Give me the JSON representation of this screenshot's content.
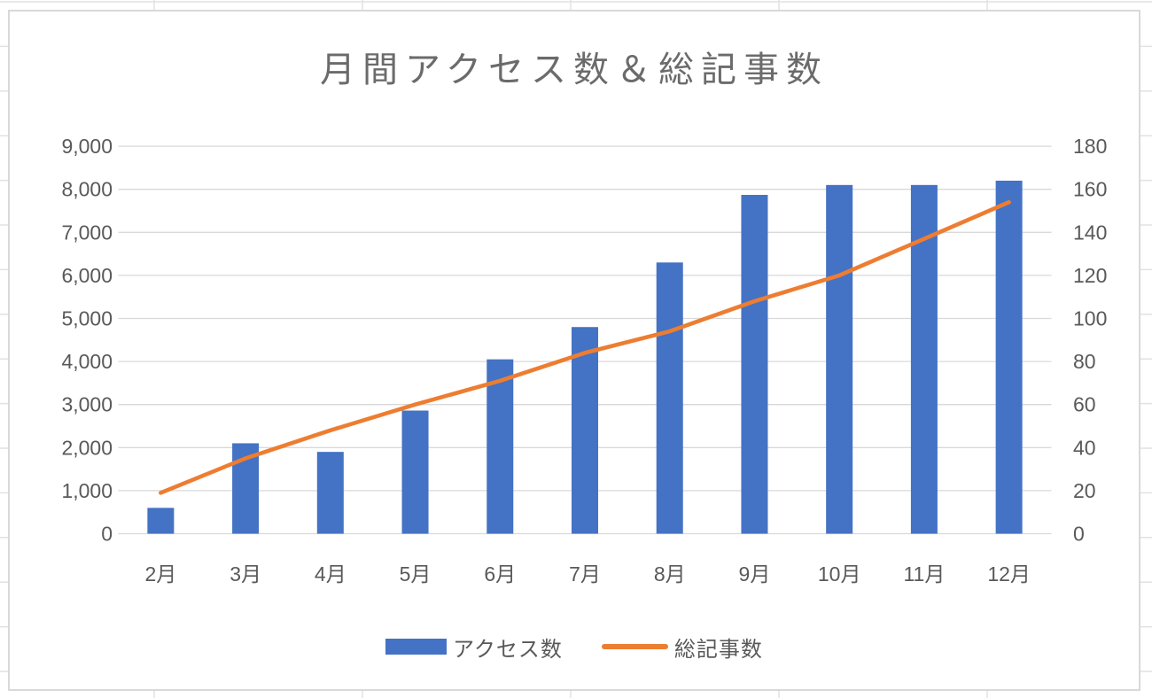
{
  "chart_data": {
    "type": "combo",
    "title": "月間アクセス数＆総記事数",
    "categories": [
      "2月",
      "3月",
      "4月",
      "5月",
      "6月",
      "7月",
      "8月",
      "9月",
      "10月",
      "11月",
      "12月"
    ],
    "series": [
      {
        "name": "アクセス数",
        "type": "bar",
        "axis": "left",
        "color": "#4472C4",
        "values": [
          600,
          2100,
          1900,
          2860,
          4050,
          4800,
          6300,
          7870,
          8100,
          8100,
          8200
        ]
      },
      {
        "name": "総記事数",
        "type": "line",
        "axis": "right",
        "color": "#ED7D31",
        "values": [
          19,
          35,
          48,
          60,
          71,
          84,
          94,
          108,
          120,
          137,
          154
        ]
      }
    ],
    "axes": {
      "left": {
        "min": 0,
        "max": 9000,
        "step": 1000,
        "tick_labels": [
          "0",
          "1,000",
          "2,000",
          "3,000",
          "4,000",
          "5,000",
          "6,000",
          "7,000",
          "8,000",
          "9,000"
        ]
      },
      "right": {
        "min": 0,
        "max": 180,
        "step": 20,
        "tick_labels": [
          "0",
          "20",
          "40",
          "60",
          "80",
          "100",
          "120",
          "140",
          "160",
          "180"
        ]
      }
    },
    "grid": true,
    "legend_position": "bottom"
  },
  "colors": {
    "bar": "#4472C4",
    "line": "#ED7D31",
    "axis_text": "#595959",
    "title_text": "#6b6b6b",
    "chart_gridline": "#D9D9D9",
    "chart_border": "#D9D9D9",
    "sheet_gridline": "#E2E2E2"
  }
}
